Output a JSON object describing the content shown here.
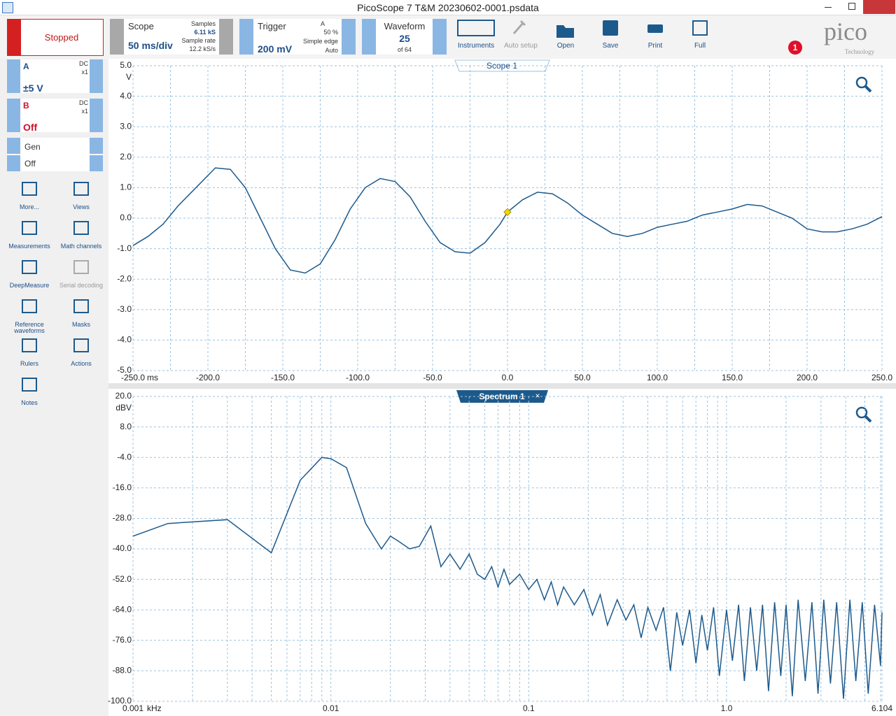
{
  "window": {
    "title": "PicoScope 7 T&M 20230602-0001.psdata"
  },
  "toolbar": {
    "run_button": "Stopped",
    "scope": {
      "label": "Scope",
      "timebase": "50 ms/div",
      "samples_label": "Samples",
      "samples": "6.11 kS",
      "rate_label": "Sample rate",
      "rate": "12.2 kS/s"
    },
    "trigger": {
      "label": "Trigger",
      "level": "200 mV",
      "channel": "A",
      "position": "50 %",
      "type": "Simple edge",
      "mode": "Auto"
    },
    "waveform": {
      "label": "Waveform",
      "index": "25",
      "count": "of 64"
    },
    "buttons": [
      "Instruments",
      "Auto setup",
      "Open",
      "Save",
      "Print",
      "Full"
    ],
    "logo": {
      "name": "pico",
      "tagline": "Technology"
    },
    "notification_count": "1"
  },
  "channels": [
    {
      "name": "A",
      "coupling": "DC",
      "probe": "x1",
      "range": "±5 V"
    },
    {
      "name": "B",
      "coupling": "DC",
      "probe": "x1",
      "range": "Off"
    }
  ],
  "generator": {
    "name": "Gen",
    "state": "Off"
  },
  "tools": [
    "More...",
    "Views",
    "Measurements",
    "Math channels",
    "DeepMeasure",
    "Serial decoding",
    "Reference waveforms",
    "Masks",
    "Rulers",
    "Actions",
    "Notes"
  ],
  "scope_view": {
    "type": "line",
    "tab": "Scope 1",
    "x_unit": "ms",
    "y_unit": "V",
    "color": "#1d5a8c",
    "grid": true,
    "xlim": [
      -250,
      250
    ],
    "ylim": [
      -5,
      5
    ],
    "xticks": [
      {
        "value": -250,
        "label": "-250.0"
      },
      {
        "value": -200,
        "label": "-200.0"
      },
      {
        "value": -150,
        "label": "-150.0"
      },
      {
        "value": -100,
        "label": "-100.0"
      },
      {
        "value": -50,
        "label": "-50.0"
      },
      {
        "value": 0,
        "label": "0.0"
      },
      {
        "value": 50,
        "label": "50.0"
      },
      {
        "value": 100,
        "label": "100.0"
      },
      {
        "value": 150,
        "label": "150.0"
      },
      {
        "value": 200,
        "label": "200.0"
      },
      {
        "value": 250,
        "label": "250.0"
      }
    ],
    "xminor": [
      -225,
      -175,
      -125,
      -75,
      -25,
      25,
      75,
      125,
      175,
      225
    ],
    "yticks": [
      {
        "value": 5,
        "label": "5.0"
      },
      {
        "value": 4,
        "label": "4.0"
      },
      {
        "value": 3,
        "label": "3.0"
      },
      {
        "value": 2,
        "label": "2.0"
      },
      {
        "value": 1,
        "label": "1.0"
      },
      {
        "value": 0,
        "label": "0.0"
      },
      {
        "value": -1,
        "label": "-1.0"
      },
      {
        "value": -2,
        "label": "-2.0"
      },
      {
        "value": -3,
        "label": "-3.0"
      },
      {
        "value": -4,
        "label": "-4.0"
      },
      {
        "value": -5,
        "label": "-5.0"
      }
    ],
    "x": [
      -250,
      -240,
      -230,
      -220,
      -210,
      -200,
      -195,
      -185,
      -175,
      -165,
      -155,
      -145,
      -135,
      -125,
      -115,
      -105,
      -95,
      -85,
      -75,
      -65,
      -55,
      -45,
      -35,
      -25,
      -15,
      -5,
      0,
      10,
      20,
      30,
      40,
      50,
      60,
      70,
      80,
      90,
      100,
      110,
      120,
      130,
      140,
      150,
      160,
      170,
      180,
      190,
      200,
      210,
      220,
      230,
      240,
      250
    ],
    "values": [
      -0.9,
      -0.6,
      -0.2,
      0.4,
      0.9,
      1.4,
      1.65,
      1.6,
      1.0,
      0.0,
      -1.0,
      -1.7,
      -1.8,
      -1.5,
      -0.7,
      0.3,
      1.0,
      1.3,
      1.2,
      0.7,
      -0.1,
      -0.8,
      -1.1,
      -1.15,
      -0.8,
      -0.2,
      0.2,
      0.6,
      0.85,
      0.8,
      0.5,
      0.1,
      -0.2,
      -0.5,
      -0.6,
      -0.5,
      -0.3,
      -0.2,
      -0.1,
      0.1,
      0.2,
      0.3,
      0.45,
      0.4,
      0.2,
      0.0,
      -0.35,
      -0.45,
      -0.45,
      -0.35,
      -0.2,
      0.05
    ],
    "trigger_marker": {
      "x": 0,
      "y": 0.2
    }
  },
  "spectrum_view": {
    "type": "line",
    "tab": "Spectrum 1",
    "close": "×",
    "x_unit": "kHz",
    "y_unit": "dBV",
    "color": "#1d5a8c",
    "grid": true,
    "xscale": "log",
    "xlim": [
      0.001,
      6.104
    ],
    "ylim": [
      -100,
      20
    ],
    "xticks": [
      0.001,
      0.01,
      0.1,
      {
        "value": 1,
        "label": "1.0"
      },
      6.104
    ],
    "xminor": [
      0.002,
      0.003,
      0.004,
      0.005,
      0.006,
      0.007,
      0.008,
      0.009,
      0.02,
      0.03,
      0.04,
      0.05,
      0.06,
      0.07,
      0.08,
      0.09,
      0.2,
      0.3,
      0.4,
      0.5,
      0.6,
      0.7,
      0.8,
      0.9,
      2,
      3,
      4,
      5,
      6
    ],
    "yticks": [
      {
        "value": 20,
        "label": "20.0"
      },
      {
        "value": 8,
        "label": "8.0"
      },
      {
        "value": -4,
        "label": "-4.0"
      },
      {
        "value": -16,
        "label": "-16.0"
      },
      {
        "value": -28,
        "label": "-28.0"
      },
      {
        "value": -40,
        "label": "-40.0"
      },
      {
        "value": -52,
        "label": "-52.0"
      },
      {
        "value": -64,
        "label": "-64.0"
      },
      {
        "value": -76,
        "label": "-76.0"
      },
      {
        "value": -88,
        "label": "-88.0"
      },
      {
        "value": -100,
        "label": "-100.0"
      }
    ],
    "x": [
      0.001,
      0.0015,
      0.003,
      0.005,
      0.007,
      0.009,
      0.01,
      0.012,
      0.015,
      0.018,
      0.02,
      0.022,
      0.025,
      0.028,
      0.032,
      0.036,
      0.04,
      0.045,
      0.05,
      0.055,
      0.06,
      0.065,
      0.07,
      0.075,
      0.08,
      0.09,
      0.1,
      0.11,
      0.12,
      0.13,
      0.14,
      0.15,
      0.17,
      0.19,
      0.21,
      0.23,
      0.25,
      0.28,
      0.31,
      0.34,
      0.37,
      0.4,
      0.44,
      0.48,
      0.52,
      0.56,
      0.6,
      0.65,
      0.7,
      0.75,
      0.8,
      0.86,
      0.92,
      1.0,
      1.07,
      1.15,
      1.23,
      1.32,
      1.42,
      1.52,
      1.63,
      1.75,
      1.88,
      2.0,
      2.15,
      2.3,
      2.5,
      2.7,
      2.9,
      3.1,
      3.35,
      3.6,
      3.9,
      4.2,
      4.5,
      4.85,
      5.2,
      5.6,
      6.0,
      6.104
    ],
    "values": [
      -35,
      -30,
      -28.5,
      -41.5,
      -13,
      -4,
      -4.5,
      -8,
      -30,
      -40,
      -35,
      -37,
      -40,
      -39,
      -31,
      -47,
      -42,
      -48,
      -42,
      -50,
      -52,
      -47,
      -55,
      -48,
      -54,
      -50,
      -56,
      -52,
      -60,
      -53,
      -62,
      -55,
      -62,
      -56,
      -66,
      -58,
      -70,
      -60,
      -68,
      -62,
      -75,
      -63,
      -72,
      -63,
      -88,
      -65,
      -78,
      -64,
      -85,
      -66,
      -80,
      -63,
      -90,
      -64,
      -84,
      -62,
      -92,
      -63,
      -88,
      -62,
      -96,
      -61,
      -90,
      -62,
      -98,
      -60,
      -92,
      -61,
      -97,
      -60,
      -93,
      -61,
      -99,
      -60,
      -92,
      -61,
      -97,
      -62,
      -86,
      -65
    ]
  }
}
